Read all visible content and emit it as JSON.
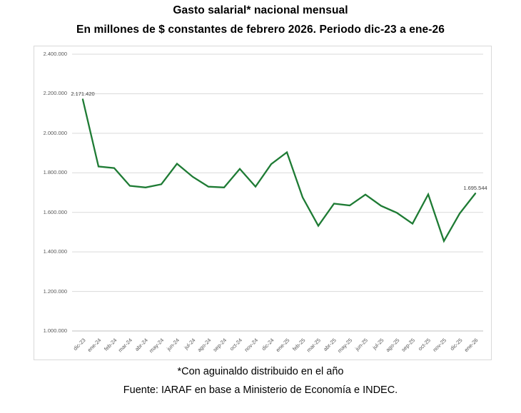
{
  "chart_data": {
    "type": "line",
    "title": "Gasto salarial* nacional mensual",
    "subtitle": "En millones de $ constantes de febrero 2026. Periodo dic-23 a ene-26",
    "footnote": "*Con aguinaldo distribuido en el año",
    "source": "Fuente: IARAF en base a Ministerio de Economía e INDEC.",
    "categories": [
      "dic-23",
      "ene-24",
      "feb-24",
      "mar-24",
      "abr-24",
      "may-24",
      "jun-24",
      "jul-24",
      "ago-24",
      "sep-24",
      "oct-24",
      "nov-24",
      "dic-24",
      "ene-25",
      "feb-25",
      "mar-25",
      "abr-25",
      "may-25",
      "jun-25",
      "jul-25",
      "ago-25",
      "sep-25",
      "oct-25",
      "nov-25",
      "dic-25",
      "ene-26"
    ],
    "series": [
      {
        "name": "Gasto salarial nacional mensual",
        "values": [
          2171420,
          1832000,
          1824000,
          1734000,
          1726000,
          1742000,
          1846000,
          1780000,
          1730000,
          1726000,
          1820000,
          1730000,
          1844000,
          1904000,
          1676000,
          1532000,
          1644000,
          1635000,
          1690000,
          1633000,
          1598000,
          1543000,
          1691000,
          1455000,
          1594000,
          1695544
        ]
      }
    ],
    "point_labels": [
      {
        "index": 0,
        "text": "2.171.420"
      },
      {
        "index": 25,
        "text": "1.695.544"
      }
    ],
    "ylim": [
      1000000,
      2400000
    ],
    "yticks": [
      1000000,
      1200000,
      1400000,
      1600000,
      1800000,
      2000000,
      2200000,
      2400000
    ],
    "ytick_labels": [
      "1.000.000",
      "1.200.000",
      "1.400.000",
      "1.600.000",
      "1.800.000",
      "2.000.000",
      "2.200.000",
      "2.400.000"
    ],
    "grid": true,
    "legend": "none",
    "colors": {
      "line": "#1E7B34",
      "grid": "#D9D9D9",
      "axis_line": "#BFBFBF",
      "tick_label": "#595959",
      "data_label": "#404040",
      "chart_border": "#D9D9D9"
    }
  }
}
